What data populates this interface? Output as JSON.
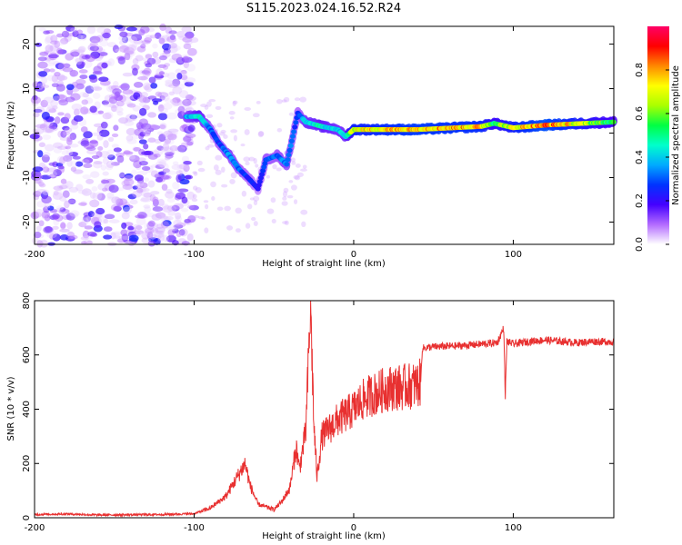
{
  "title": "S115.2023.024.16.52.R24",
  "colors": {
    "axis": "#000000",
    "snr_line": "#e83030",
    "background": "#ffffff"
  },
  "chart_data": [
    {
      "type": "heatmap",
      "xlabel": "Height of straight line (km)",
      "ylabel": "Frequency (Hz)",
      "xlim": [
        -200,
        163
      ],
      "ylim": [
        -25,
        24
      ],
      "xticks": [
        -200,
        -100,
        0,
        100
      ],
      "yticks": [
        20,
        10,
        0,
        -10,
        -20
      ],
      "colorbar": {
        "label": "Normalized spectral amplitude",
        "range": [
          0.0,
          1.0
        ],
        "ticks": [
          0.0,
          0.2,
          0.4,
          0.6,
          0.8
        ],
        "colormap": [
          "#ffffff",
          "#b36bff",
          "#4400ff",
          "#0033ff",
          "#00aaff",
          "#00ffcc",
          "#00ff44",
          "#aaff00",
          "#ffff00",
          "#ff8800",
          "#ff0000",
          "#ff0066"
        ]
      },
      "ridge": [
        {
          "x": -105,
          "y": 3.7,
          "v": 0.35
        },
        {
          "x": -97,
          "y": 3.8,
          "v": 0.45
        },
        {
          "x": -90,
          "y": 1.0,
          "v": 0.3
        },
        {
          "x": -85,
          "y": -2.0,
          "v": 0.25
        },
        {
          "x": -78,
          "y": -5.0,
          "v": 0.35
        },
        {
          "x": -72,
          "y": -8.0,
          "v": 0.3
        },
        {
          "x": -65,
          "y": -10.5,
          "v": 0.25
        },
        {
          "x": -60,
          "y": -12.5,
          "v": 0.2
        },
        {
          "x": -55,
          "y": -6.0,
          "v": 0.3
        },
        {
          "x": -48,
          "y": -5.0,
          "v": 0.3
        },
        {
          "x": -42,
          "y": -7.0,
          "v": 0.35
        },
        {
          "x": -35,
          "y": 4.5,
          "v": 0.25
        },
        {
          "x": -30,
          "y": 2.5,
          "v": 0.4
        },
        {
          "x": -20,
          "y": 1.5,
          "v": 0.45
        },
        {
          "x": -10,
          "y": 0.8,
          "v": 0.4
        },
        {
          "x": -5,
          "y": -0.8,
          "v": 0.4
        },
        {
          "x": 0,
          "y": 0.8,
          "v": 0.7
        },
        {
          "x": 40,
          "y": 0.8,
          "v": 0.8
        },
        {
          "x": 80,
          "y": 1.5,
          "v": 0.75
        },
        {
          "x": 88,
          "y": 2.2,
          "v": 0.55
        },
        {
          "x": 100,
          "y": 1.2,
          "v": 0.7
        },
        {
          "x": 120,
          "y": 1.8,
          "v": 0.85
        },
        {
          "x": 163,
          "y": 2.5,
          "v": 0.5
        }
      ],
      "noise_region": {
        "x_from": -200,
        "x_to": -100,
        "y_from": -25,
        "y_to": 24,
        "level": 0.15
      }
    },
    {
      "type": "line",
      "xlabel": "Height of straight line (km)",
      "ylabel": "SNR (10 * v/v)",
      "xlim": [
        -200,
        163
      ],
      "ylim": [
        0,
        800
      ],
      "xticks": [
        -200,
        -100,
        0,
        100
      ],
      "yticks": [
        0,
        200,
        400,
        600,
        800
      ],
      "series": [
        {
          "color": "#e83030",
          "x": [
            -200,
            -180,
            -160,
            -140,
            -120,
            -100,
            -90,
            -80,
            -72,
            -68,
            -65,
            -60,
            -55,
            -50,
            -45,
            -40,
            -36,
            -34,
            -30,
            -27,
            -25,
            -23,
            -20,
            -15,
            -10,
            -5,
            0,
            5,
            10,
            15,
            20,
            25,
            30,
            35,
            40,
            42,
            43,
            50,
            60,
            70,
            80,
            90,
            94,
            95,
            96,
            100,
            110,
            120,
            130,
            140,
            150,
            163
          ],
          "y": [
            12,
            14,
            10,
            11,
            12,
            15,
            35,
            80,
            160,
            200,
            120,
            50,
            40,
            30,
            60,
            110,
            260,
            180,
            320,
            790,
            350,
            150,
            300,
            330,
            360,
            380,
            400,
            430,
            450,
            460,
            475,
            480,
            480,
            485,
            490,
            500,
            625,
            630,
            632,
            635,
            640,
            645,
            700,
            450,
            650,
            640,
            650,
            655,
            650,
            645,
            650,
            648
          ]
        }
      ]
    }
  ]
}
